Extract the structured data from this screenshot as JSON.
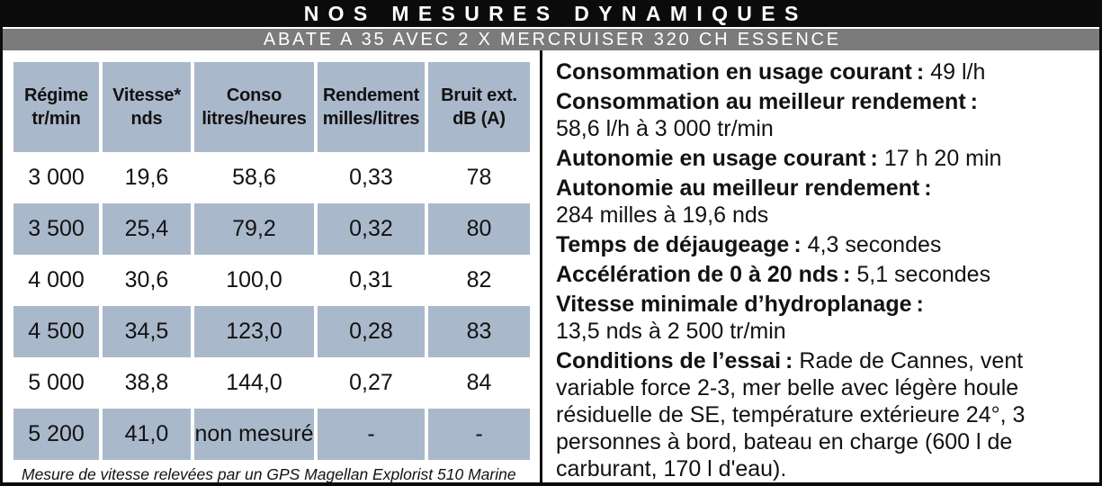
{
  "header": {
    "title": "NOS MESURES DYNAMIQUES",
    "subtitle": "ABATE A 35 AVEC 2 X MERCRUISER 320 CH ESSENCE"
  },
  "table": {
    "columns": [
      "Régime\ntr/min",
      "Vitesse*\nnds",
      "Conso\nlitres/heures",
      "Rendement\nmilles/litres",
      "Bruit ext.\ndB (A)"
    ],
    "rows": [
      [
        "3 000",
        "19,6",
        "58,6",
        "0,33",
        "78"
      ],
      [
        "3 500",
        "25,4",
        "79,2",
        "0,32",
        "80"
      ],
      [
        "4 000",
        "30,6",
        "100,0",
        "0,31",
        "82"
      ],
      [
        "4 500",
        "34,5",
        "123,0",
        "0,28",
        "83"
      ],
      [
        "5 000",
        "38,8",
        "144,0",
        "0,27",
        "84"
      ],
      [
        "5 200",
        "41,0",
        "non mesuré",
        "-",
        "-"
      ]
    ],
    "footnote": "Mesure de vitesse relevées par un GPS Magellan Explorist 510 Marine"
  },
  "specs": {
    "items": [
      {
        "label": "Consommation en usage courant :",
        "value": "49 l/h",
        "value_on_new_line": false
      },
      {
        "label": "Consommation au meilleur rendement :",
        "value": "58,6 l/h à 3 000 tr/min",
        "value_on_new_line": true
      },
      {
        "label": "Autonomie en usage courant :",
        "value": "17 h 20 min",
        "value_on_new_line": false
      },
      {
        "label": "Autonomie au meilleur rendement :",
        "value": "284 milles à 19,6 nds",
        "value_on_new_line": true
      },
      {
        "label": "Temps de déjaugeage :",
        "value": "4,3 secondes",
        "value_on_new_line": false
      },
      {
        "label": "Accélération de 0 à 20 nds :",
        "value": "5,1 secondes",
        "value_on_new_line": false
      },
      {
        "label": "Vitesse minimale d’hydroplanage :",
        "value": "13,5 nds à 2 500 tr/min",
        "value_on_new_line": true
      },
      {
        "label": "Conditions de l’essai :",
        "value": "Rade de Cannes, vent variable force 2-3, mer belle avec légère houle résiduelle de SE, température extérieure 24°, 3 personnes à bord, bateau en charge (600 l de carburant, 170 l d'eau).",
        "value_on_new_line": false
      }
    ]
  },
  "colors": {
    "bar-black": "#0b0b0b",
    "bar-gray": "#7b7b7b",
    "cell-blue": "#aab8cb",
    "text": "#121212"
  }
}
